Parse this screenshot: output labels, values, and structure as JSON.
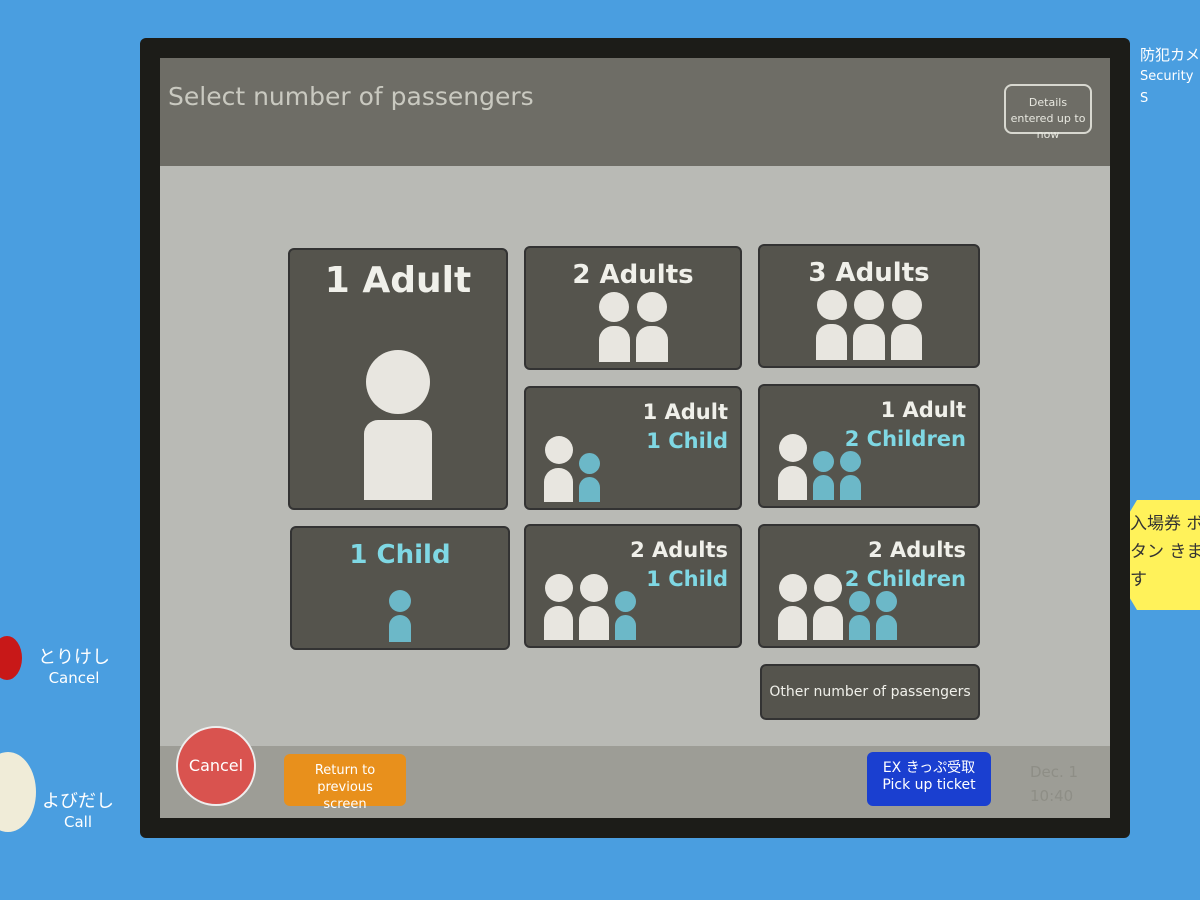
{
  "screen": {
    "title": "Select number of passengers",
    "details_button": "Details entered up to now"
  },
  "options": [
    {
      "adults_label": "1 Adult",
      "children_label": "",
      "adults": 1,
      "children": 0
    },
    {
      "adults_label": "2 Adults",
      "children_label": "",
      "adults": 2,
      "children": 0
    },
    {
      "adults_label": "3 Adults",
      "children_label": "",
      "adults": 3,
      "children": 0
    },
    {
      "adults_label": "1 Adult",
      "children_label": "1 Child",
      "adults": 1,
      "children": 1
    },
    {
      "adults_label": "1 Adult",
      "children_label": "2 Children",
      "adults": 1,
      "children": 2
    },
    {
      "adults_label": "",
      "children_label": "1 Child",
      "adults": 0,
      "children": 1
    },
    {
      "adults_label": "2 Adults",
      "children_label": "1 Child",
      "adults": 2,
      "children": 1
    },
    {
      "adults_label": "2 Adults",
      "children_label": "2 Children",
      "adults": 2,
      "children": 2
    }
  ],
  "other_button": "Other number of passengers",
  "footer": {
    "cancel": "Cancel",
    "return": "Return to previous screen",
    "ex_jp": "EX きっぷ受取",
    "ex_en": "Pick up ticket",
    "date": "Dec. 1",
    "time": "10:40"
  },
  "machine": {
    "cancel_jp": "とりけし",
    "cancel_en": "Cancel",
    "call_jp": "よびだし",
    "call_en": "Call",
    "camera_jp": "防犯カメ",
    "camera_en": "Security S",
    "sticker": "入場券 ボタン きます"
  },
  "colors": {
    "body": "#4a9ee0",
    "tile": "#55544d",
    "child": "#7fd8e4",
    "cancel": "#d9534f",
    "return": "#e8901c",
    "ex": "#1a3fd0"
  }
}
